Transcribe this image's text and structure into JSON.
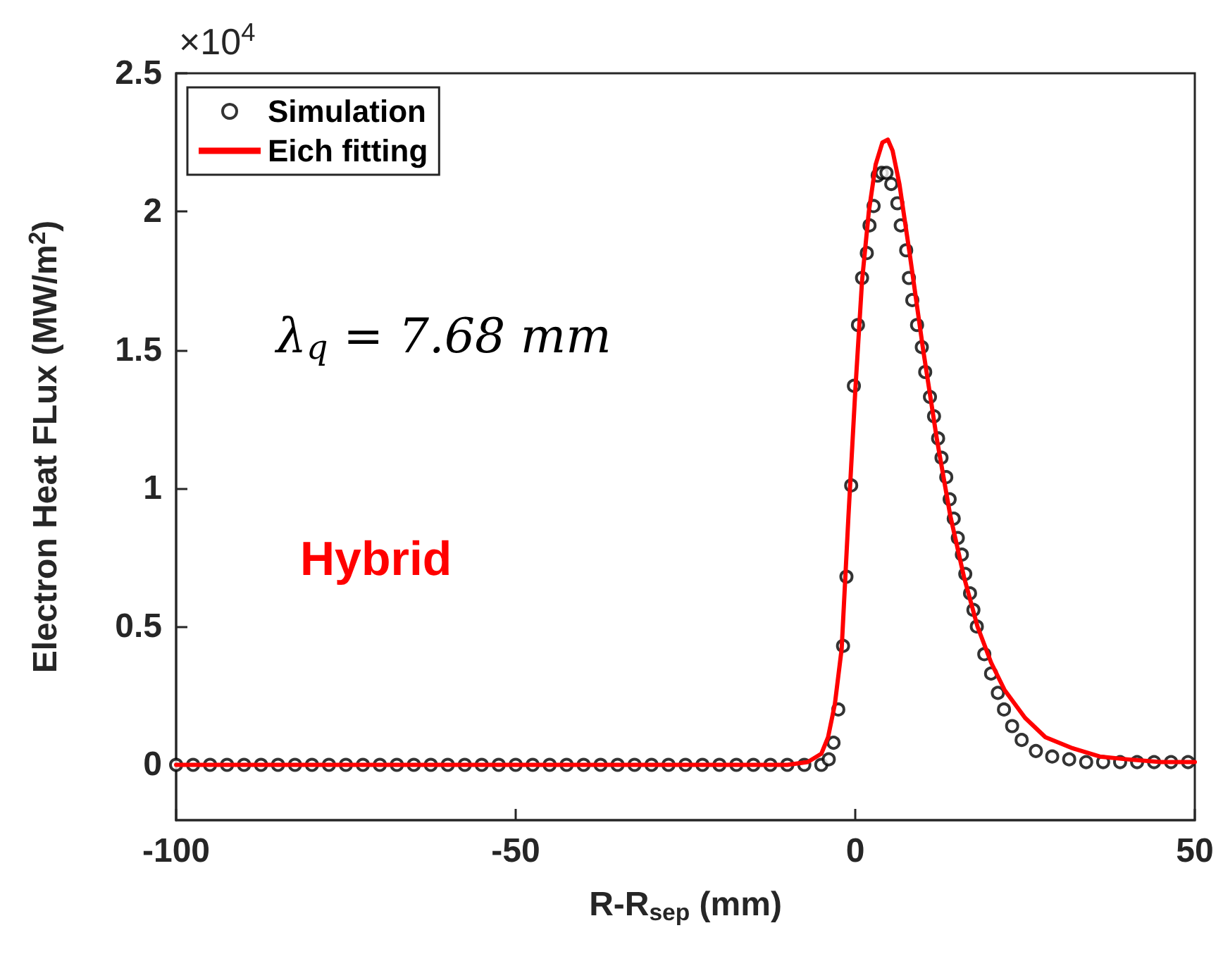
{
  "chart_data": {
    "type": "scatter",
    "xlabel": "R-R$_{sep}$ (mm)",
    "ylabel": "Electron Heat FLux (MW/m$^{2}$)",
    "annotations": [
      "×10$^{4}$",
      "λ$_{q}$ = 7.68 mm",
      "Hybrid"
    ],
    "xlim": [
      -100,
      50
    ],
    "xticks": [
      -100,
      -50,
      0,
      50
    ],
    "ylim": [
      -0.2,
      2.5
    ],
    "yticks": [
      0,
      0.5,
      1,
      1.5,
      2,
      2.5
    ],
    "grid": false,
    "legend": "top left",
    "series": [
      {
        "name": "Simulation",
        "marker": "circle",
        "color": "#000000",
        "x": [
          -100,
          -97.5,
          -95,
          -92.5,
          -90,
          -87.5,
          -85,
          -82.5,
          -80,
          -77.5,
          -75,
          -72.5,
          -70,
          -67.5,
          -65,
          -62.5,
          -60,
          -57.5,
          -55,
          -52.5,
          -50,
          -47.5,
          -45,
          -42.5,
          -40,
          -37.5,
          -35,
          -32.5,
          -30,
          -27.5,
          -25,
          -22.5,
          -20,
          -17.5,
          -15,
          -12.5,
          -10,
          -7.5,
          -5,
          -3.9,
          -3.2,
          -2.5,
          -1.8,
          -1.3,
          -0.6,
          -0.2,
          0.4,
          1.0,
          1.7,
          2.1,
          2.7,
          3.3,
          3.9,
          4.6,
          5.3,
          6.2,
          6.7,
          7.5,
          7.9,
          8.4,
          9.1,
          9.8,
          10.3,
          11.0,
          11.6,
          12.2,
          12.7,
          13.4,
          13.9,
          14.5,
          15.1,
          15.7,
          16.2,
          16.9,
          17.4,
          17.9,
          19.0,
          20.0,
          21.0,
          21.9,
          23.1,
          24.5,
          26.6,
          29.0,
          31.5,
          34,
          36.5,
          39,
          41.5,
          44,
          46.5,
          49
        ],
        "values": [
          0,
          0,
          0,
          0,
          0,
          0,
          0,
          0,
          0,
          0,
          0,
          0,
          0,
          0,
          0,
          0,
          0,
          0,
          0,
          0,
          0,
          0,
          0,
          0,
          0,
          0,
          0,
          0,
          0,
          0,
          0,
          0,
          0,
          0,
          0,
          0,
          0,
          0,
          0,
          0.02,
          0.08,
          0.2,
          0.43,
          0.68,
          1.01,
          1.37,
          1.59,
          1.76,
          1.85,
          1.95,
          2.02,
          2.13,
          2.14,
          2.14,
          2.1,
          2.03,
          1.95,
          1.86,
          1.76,
          1.68,
          1.59,
          1.51,
          1.42,
          1.33,
          1.26,
          1.18,
          1.11,
          1.04,
          0.96,
          0.89,
          0.82,
          0.76,
          0.69,
          0.62,
          0.56,
          0.5,
          0.4,
          0.33,
          0.26,
          0.2,
          0.14,
          0.09,
          0.05,
          0.03,
          0.02,
          0.01,
          0.01,
          0.01,
          0.01,
          0.01,
          0.01,
          0.01
        ]
      },
      {
        "name": "Eich fitting",
        "type": "line",
        "marker": "none",
        "line_style": "solid",
        "color": "#ff0000",
        "x": [
          -100,
          -10,
          -7,
          -5,
          -4,
          -3,
          -2,
          -1,
          0,
          1,
          2,
          3,
          4,
          4.8,
          5.5,
          6.5,
          8,
          10,
          12,
          14,
          16,
          18,
          20,
          22,
          25,
          28,
          32,
          36,
          40,
          45,
          50
        ],
        "values": [
          0,
          0,
          0.01,
          0.04,
          0.1,
          0.22,
          0.42,
          0.9,
          1.35,
          1.75,
          2.0,
          2.17,
          2.25,
          2.26,
          2.22,
          2.1,
          1.85,
          1.5,
          1.18,
          0.9,
          0.68,
          0.5,
          0.37,
          0.27,
          0.17,
          0.1,
          0.06,
          0.03,
          0.02,
          0.01,
          0.01
        ]
      }
    ]
  }
}
